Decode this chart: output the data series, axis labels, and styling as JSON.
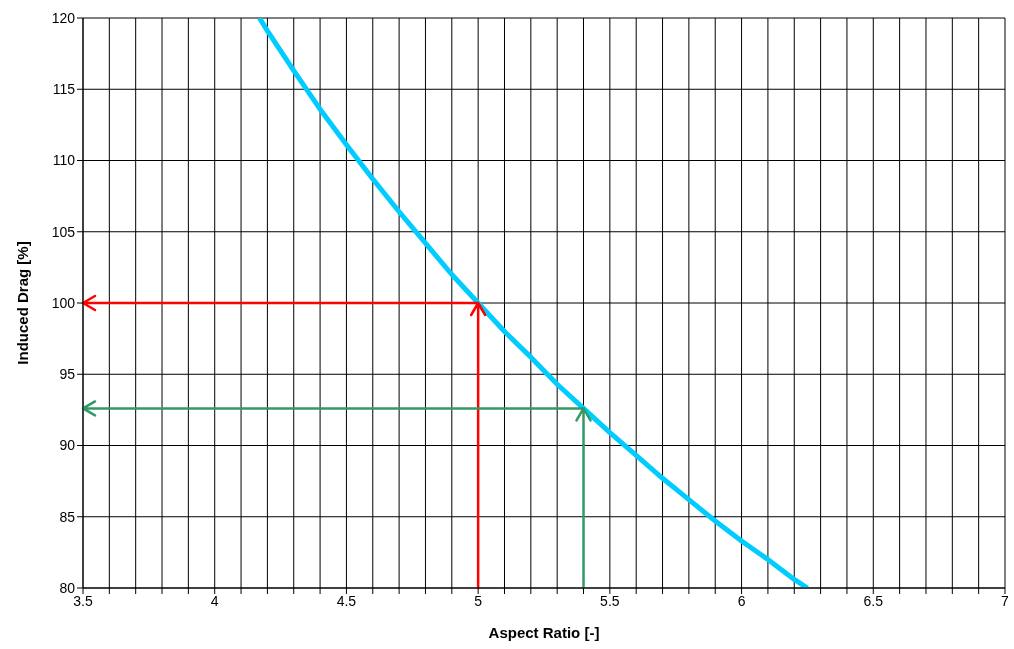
{
  "chart_data": {
    "type": "line",
    "xlabel": "Aspect Ratio [-]",
    "ylabel": "Induced Drag [%]",
    "xlim": [
      3.5,
      7
    ],
    "ylim": [
      80,
      120
    ],
    "xticks": [
      3.5,
      {
        "value": 3.6,
        "label": null
      },
      {
        "value": 3.7,
        "label": null
      },
      {
        "value": 3.8,
        "label": null
      },
      {
        "value": 3.9,
        "label": null
      },
      4,
      {
        "value": 4.1,
        "label": null
      },
      {
        "value": 4.2,
        "label": null
      },
      {
        "value": 4.3,
        "label": null
      },
      {
        "value": 4.4,
        "label": null
      },
      4.5,
      {
        "value": 4.6,
        "label": null
      },
      {
        "value": 4.7,
        "label": null
      },
      {
        "value": 4.8,
        "label": null
      },
      {
        "value": 4.9,
        "label": null
      },
      5,
      {
        "value": 5.1,
        "label": null
      },
      {
        "value": 5.2,
        "label": null
      },
      {
        "value": 5.3,
        "label": null
      },
      {
        "value": 5.4,
        "label": null
      },
      5.5,
      {
        "value": 5.6,
        "label": null
      },
      {
        "value": 5.7,
        "label": null
      },
      {
        "value": 5.8,
        "label": null
      },
      {
        "value": 5.9,
        "label": null
      },
      6,
      {
        "value": 6.1,
        "label": null
      },
      {
        "value": 6.2,
        "label": null
      },
      {
        "value": 6.3,
        "label": null
      },
      {
        "value": 6.4,
        "label": null
      },
      6.5,
      {
        "value": 6.6,
        "label": null
      },
      {
        "value": 6.7,
        "label": null
      },
      {
        "value": 6.8,
        "label": null
      },
      {
        "value": 6.9,
        "label": null
      },
      7
    ],
    "yticks": [
      80,
      85,
      90,
      95,
      100,
      105,
      110,
      115,
      120
    ],
    "grid": true,
    "marker": "none",
    "line_style": "solid",
    "series": [
      {
        "color": "#00ccff",
        "x": [
          4.17,
          4.2,
          4.3,
          4.4,
          4.5,
          4.6,
          4.7,
          4.8,
          4.9,
          5,
          5.1,
          5.2,
          5.3,
          5.4,
          5.5,
          5.6,
          5.7,
          5.8,
          5.9,
          6,
          6.1,
          6.2,
          6.25
        ],
        "values": [
          120,
          119.1,
          116.3,
          113.6,
          111.1,
          108.7,
          106.4,
          104.2,
          102,
          100,
          98,
          96.2,
          94.3,
          92.6,
          90.9,
          89.3,
          87.7,
          86.2,
          84.7,
          83.3,
          82,
          80.6,
          80
        ]
      },
      {
        "color": "#ff0000",
        "x": [
          5,
          5,
          3.5
        ],
        "values": [
          80,
          100,
          100
        ]
      },
      {
        "color": "#339966",
        "x": [
          5.4,
          5.4,
          3.5
        ],
        "values": [
          80,
          92.6,
          92.6
        ]
      }
    ]
  }
}
